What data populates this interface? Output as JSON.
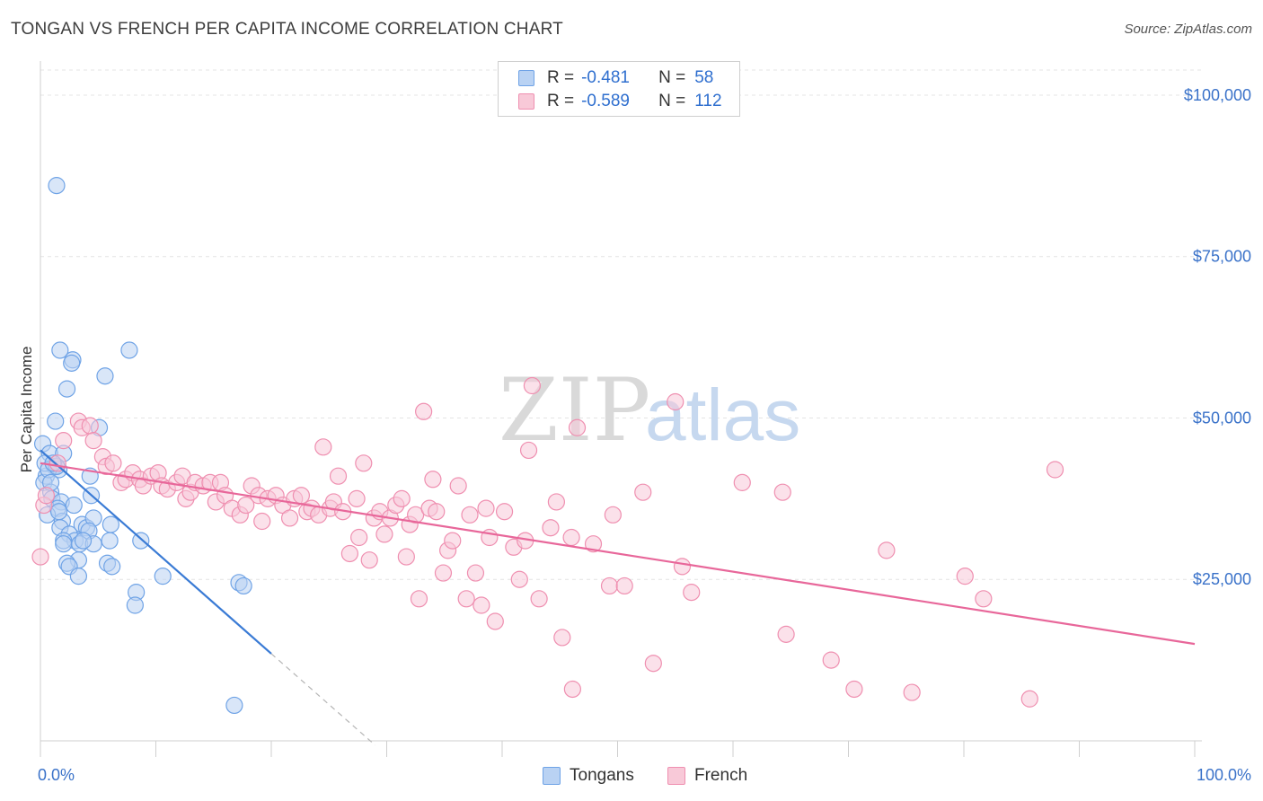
{
  "title": "TONGAN VS FRENCH PER CAPITA INCOME CORRELATION CHART",
  "source": "Source: ZipAtlas.com",
  "watermark": {
    "zip": "ZIP",
    "atlas": "atlas"
  },
  "legend": {
    "rows": [
      {
        "r_label": "R =",
        "r_value": "-0.481",
        "n_label": "N =",
        "n_value": "58",
        "color": "#6fa3e6",
        "fill": "#b9d2f3"
      },
      {
        "r_label": "R =",
        "r_value": "-0.589",
        "n_label": "N =",
        "n_value": "112",
        "color": "#ef8fb0",
        "fill": "#f8c9d8"
      }
    ],
    "bottom": [
      {
        "label": "Tongans",
        "color": "#6fa3e6",
        "fill": "#b9d2f3"
      },
      {
        "label": "French",
        "color": "#ef8fb0",
        "fill": "#f8c9d8"
      }
    ]
  },
  "chart_data": {
    "type": "scatter",
    "title": "TONGAN VS FRENCH PER CAPITA INCOME CORRELATION CHART",
    "xlabel": "",
    "ylabel": "Per Capita Income",
    "xlim": [
      0,
      100
    ],
    "ylim": [
      0,
      105000
    ],
    "x_tick_labels": {
      "0": "0.0%",
      "100": "100.0%"
    },
    "y_ticks": [
      25000,
      50000,
      75000,
      100000
    ],
    "y_tick_labels": [
      "$25,000",
      "$50,000",
      "$75,000",
      "$100,000"
    ],
    "grid": true,
    "legend_position": "top-center",
    "series": [
      {
        "name": "Tongans",
        "color": "#3a7bd5",
        "fill": "#b9d2f3",
        "stroke": "#6fa3e6",
        "trend": {
          "x0": 0,
          "y0": 45000,
          "x1": 20,
          "y1": 13500,
          "dash_to_x": 29
        },
        "points": [
          [
            1.4,
            86000
          ],
          [
            0.2,
            46000
          ],
          [
            0.8,
            44500
          ],
          [
            1.2,
            42500
          ],
          [
            1.6,
            42000
          ],
          [
            0.5,
            41000
          ],
          [
            0.3,
            40000
          ],
          [
            0.9,
            38500
          ],
          [
            1.0,
            37500
          ],
          [
            1.8,
            37000
          ],
          [
            1.5,
            36000
          ],
          [
            0.6,
            35000
          ],
          [
            1.9,
            34000
          ],
          [
            1.7,
            33000
          ],
          [
            1.7,
            60500
          ],
          [
            2.8,
            59000
          ],
          [
            2.7,
            58500
          ],
          [
            5.6,
            56500
          ],
          [
            2.3,
            54500
          ],
          [
            1.3,
            49500
          ],
          [
            5.1,
            48500
          ],
          [
            2.0,
            44500
          ],
          [
            0.4,
            43000
          ],
          [
            0.7,
            42000
          ],
          [
            1.4,
            42500
          ],
          [
            4.3,
            41000
          ],
          [
            4.4,
            38000
          ],
          [
            2.9,
            36500
          ],
          [
            1.6,
            35500
          ],
          [
            3.6,
            33500
          ],
          [
            4.0,
            33000
          ],
          [
            4.6,
            34500
          ],
          [
            6.1,
            33500
          ],
          [
            2.5,
            32000
          ],
          [
            4.2,
            32500
          ],
          [
            3.0,
            31000
          ],
          [
            3.4,
            30500
          ],
          [
            2.0,
            31000
          ],
          [
            4.6,
            30500
          ],
          [
            6.0,
            31000
          ],
          [
            8.7,
            31000
          ],
          [
            3.3,
            28000
          ],
          [
            2.3,
            27500
          ],
          [
            2.5,
            27000
          ],
          [
            5.8,
            27500
          ],
          [
            6.2,
            27000
          ],
          [
            3.3,
            25500
          ],
          [
            10.6,
            25500
          ],
          [
            8.3,
            23000
          ],
          [
            8.2,
            21000
          ],
          [
            17.2,
            24500
          ],
          [
            17.6,
            24000
          ],
          [
            7.7,
            60500
          ],
          [
            2.0,
            30500
          ],
          [
            3.7,
            31000
          ],
          [
            1.1,
            43000
          ],
          [
            16.8,
            5500
          ],
          [
            0.9,
            40000
          ]
        ],
        "radius": 9
      },
      {
        "name": "French",
        "color": "#e8679a",
        "fill": "#f8c9d8",
        "stroke": "#ef8fb0",
        "trend": {
          "x0": 0,
          "y0": 43000,
          "x1": 100,
          "y1": 15000
        },
        "points": [
          [
            0.0,
            28500
          ],
          [
            0.3,
            36500
          ],
          [
            0.5,
            38000
          ],
          [
            1.5,
            43000
          ],
          [
            2.0,
            46500
          ],
          [
            3.3,
            49500
          ],
          [
            3.6,
            48500
          ],
          [
            4.3,
            48800
          ],
          [
            4.6,
            46500
          ],
          [
            5.4,
            44000
          ],
          [
            5.7,
            42500
          ],
          [
            6.3,
            43000
          ],
          [
            7.0,
            40000
          ],
          [
            7.4,
            40500
          ],
          [
            8.0,
            41500
          ],
          [
            8.6,
            40500
          ],
          [
            8.9,
            39500
          ],
          [
            9.6,
            41000
          ],
          [
            10.2,
            41500
          ],
          [
            10.5,
            39500
          ],
          [
            11.0,
            39000
          ],
          [
            11.8,
            40000
          ],
          [
            12.3,
            41000
          ],
          [
            12.6,
            37500
          ],
          [
            13.0,
            38500
          ],
          [
            13.4,
            40000
          ],
          [
            14.1,
            39500
          ],
          [
            14.7,
            40000
          ],
          [
            15.2,
            37000
          ],
          [
            15.6,
            40000
          ],
          [
            16.0,
            38000
          ],
          [
            16.6,
            36000
          ],
          [
            17.3,
            35000
          ],
          [
            17.8,
            36500
          ],
          [
            18.3,
            39500
          ],
          [
            18.9,
            38000
          ],
          [
            19.2,
            34000
          ],
          [
            19.7,
            37500
          ],
          [
            20.4,
            38000
          ],
          [
            21.0,
            36500
          ],
          [
            21.6,
            34500
          ],
          [
            22.0,
            37500
          ],
          [
            22.6,
            38000
          ],
          [
            23.1,
            35500
          ],
          [
            23.5,
            36000
          ],
          [
            24.1,
            35000
          ],
          [
            24.5,
            45500
          ],
          [
            25.1,
            36000
          ],
          [
            25.4,
            37000
          ],
          [
            25.8,
            41000
          ],
          [
            26.2,
            35500
          ],
          [
            26.8,
            29000
          ],
          [
            27.4,
            37500
          ],
          [
            27.6,
            31500
          ],
          [
            28.0,
            43000
          ],
          [
            28.5,
            28000
          ],
          [
            28.9,
            34500
          ],
          [
            29.4,
            35500
          ],
          [
            29.8,
            32000
          ],
          [
            30.3,
            34500
          ],
          [
            30.8,
            36500
          ],
          [
            31.3,
            37500
          ],
          [
            31.7,
            28500
          ],
          [
            32.0,
            33500
          ],
          [
            32.5,
            35000
          ],
          [
            32.8,
            22000
          ],
          [
            33.2,
            51000
          ],
          [
            33.7,
            36000
          ],
          [
            34.0,
            40500
          ],
          [
            34.3,
            35500
          ],
          [
            34.9,
            26000
          ],
          [
            35.3,
            29500
          ],
          [
            35.7,
            31000
          ],
          [
            36.2,
            39500
          ],
          [
            36.9,
            22000
          ],
          [
            37.2,
            35000
          ],
          [
            37.7,
            26000
          ],
          [
            38.2,
            21000
          ],
          [
            38.6,
            36000
          ],
          [
            38.9,
            31500
          ],
          [
            39.4,
            18500
          ],
          [
            40.2,
            35500
          ],
          [
            41.0,
            30000
          ],
          [
            41.5,
            25000
          ],
          [
            42.0,
            31000
          ],
          [
            42.6,
            55000
          ],
          [
            42.3,
            45000
          ],
          [
            43.2,
            22000
          ],
          [
            44.2,
            33000
          ],
          [
            44.7,
            37000
          ],
          [
            45.2,
            16000
          ],
          [
            46.0,
            31500
          ],
          [
            46.5,
            48500
          ],
          [
            46.1,
            8000
          ],
          [
            47.9,
            30500
          ],
          [
            49.3,
            24000
          ],
          [
            49.6,
            35000
          ],
          [
            50.6,
            24000
          ],
          [
            52.2,
            38500
          ],
          [
            53.1,
            12000
          ],
          [
            55.0,
            52500
          ],
          [
            55.6,
            27000
          ],
          [
            56.4,
            23000
          ],
          [
            60.8,
            40000
          ],
          [
            64.3,
            38500
          ],
          [
            64.6,
            16500
          ],
          [
            68.5,
            12500
          ],
          [
            70.5,
            8000
          ],
          [
            73.3,
            29500
          ],
          [
            75.5,
            7500
          ],
          [
            80.1,
            25500
          ],
          [
            81.7,
            22000
          ],
          [
            85.7,
            6500
          ],
          [
            87.9,
            42000
          ]
        ],
        "radius": 9
      }
    ]
  }
}
